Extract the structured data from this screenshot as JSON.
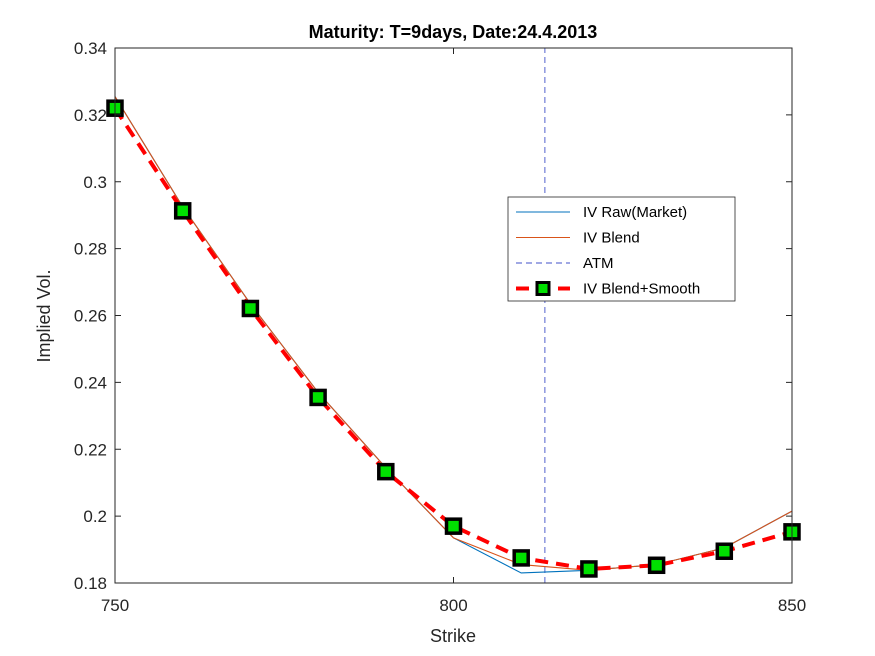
{
  "chart_data": {
    "type": "line",
    "title": "Maturity: T=9days, Date:24.4.2013",
    "xlabel": "Strike",
    "ylabel": "Implied Vol.",
    "xlim": [
      750,
      850
    ],
    "ylim": [
      0.18,
      0.34
    ],
    "xticks": [
      750,
      800,
      850
    ],
    "xtick_labels": [
      "750",
      "800",
      "850"
    ],
    "yticks": [
      0.18,
      0.2,
      0.22,
      0.24,
      0.26,
      0.28,
      0.3,
      0.32,
      0.34
    ],
    "ytick_labels": [
      "0.18",
      "0.2",
      "0.22",
      "0.24",
      "0.26",
      "0.28",
      "0.3",
      "0.32",
      "0.34"
    ],
    "grid": false,
    "legend_position": "right, middle",
    "series": [
      {
        "name": "IV Raw(Market)",
        "style": "solid-thin",
        "color": "#0072BD",
        "x": [
          750,
          760,
          770,
          780,
          790,
          800,
          810,
          820,
          830,
          840,
          850
        ],
        "y": [
          0.3255,
          0.2925,
          0.2635,
          0.237,
          0.2145,
          0.1935,
          0.183,
          0.1838,
          0.1855,
          0.1905,
          0.2015
        ]
      },
      {
        "name": "IV Blend",
        "style": "solid-thin",
        "color": "#D95319",
        "x": [
          750,
          760,
          770,
          780,
          790,
          800,
          810,
          820,
          830,
          840,
          850
        ],
        "y": [
          0.3255,
          0.2925,
          0.2635,
          0.237,
          0.2145,
          0.1935,
          0.1855,
          0.1838,
          0.1855,
          0.1905,
          0.2015
        ]
      },
      {
        "name": "ATM",
        "style": "dash-vertical",
        "color": "#4050C8",
        "x": [
          813.5,
          813.5
        ],
        "y": [
          0.18,
          0.34
        ]
      },
      {
        "name": "IV Blend+Smooth",
        "style": "dashed-thick-markers",
        "color": "#FF0000",
        "marker_face": "#00E000",
        "marker_edge": "#000000",
        "x": [
          750,
          760,
          770,
          780,
          790,
          800,
          810,
          820,
          830,
          840,
          850
        ],
        "y": [
          0.322,
          0.2913,
          0.2621,
          0.2355,
          0.2133,
          0.197,
          0.1875,
          0.1842,
          0.1853,
          0.1895,
          0.1953
        ]
      }
    ]
  }
}
